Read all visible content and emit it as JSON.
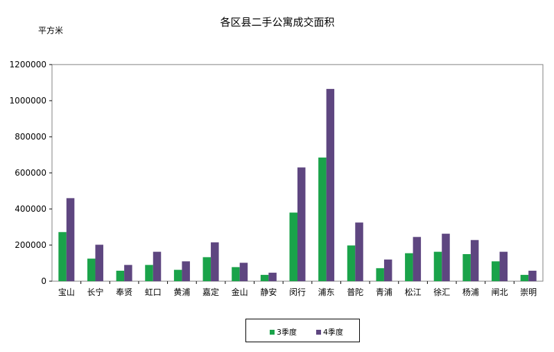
{
  "chart_data": {
    "type": "bar",
    "title": "各区县二手公寓成交面积",
    "unit_label": "平方米",
    "ylim": [
      0,
      1200000
    ],
    "yticks": [
      0,
      200000,
      400000,
      600000,
      800000,
      1000000,
      1200000
    ],
    "categories": [
      "宝山",
      "长宁",
      "奉贤",
      "虹口",
      "黄浦",
      "嘉定",
      "金山",
      "静安",
      "闵行",
      "浦东",
      "普陀",
      "青浦",
      "松江",
      "徐汇",
      "杨浦",
      "闸北",
      "崇明"
    ],
    "series": [
      {
        "name": "3季度",
        "color": "#1aa34a",
        "values": [
          272000,
          125000,
          58000,
          90000,
          63000,
          133000,
          78000,
          35000,
          380000,
          685000,
          198000,
          72000,
          155000,
          163000,
          150000,
          110000,
          35000
        ]
      },
      {
        "name": "4季度",
        "color": "#5e4680",
        "values": [
          460000,
          202000,
          90000,
          163000,
          110000,
          215000,
          102000,
          47000,
          630000,
          1065000,
          325000,
          120000,
          245000,
          263000,
          228000,
          163000,
          58000
        ]
      }
    ],
    "legend_position": "bottom-center",
    "grid": false
  }
}
